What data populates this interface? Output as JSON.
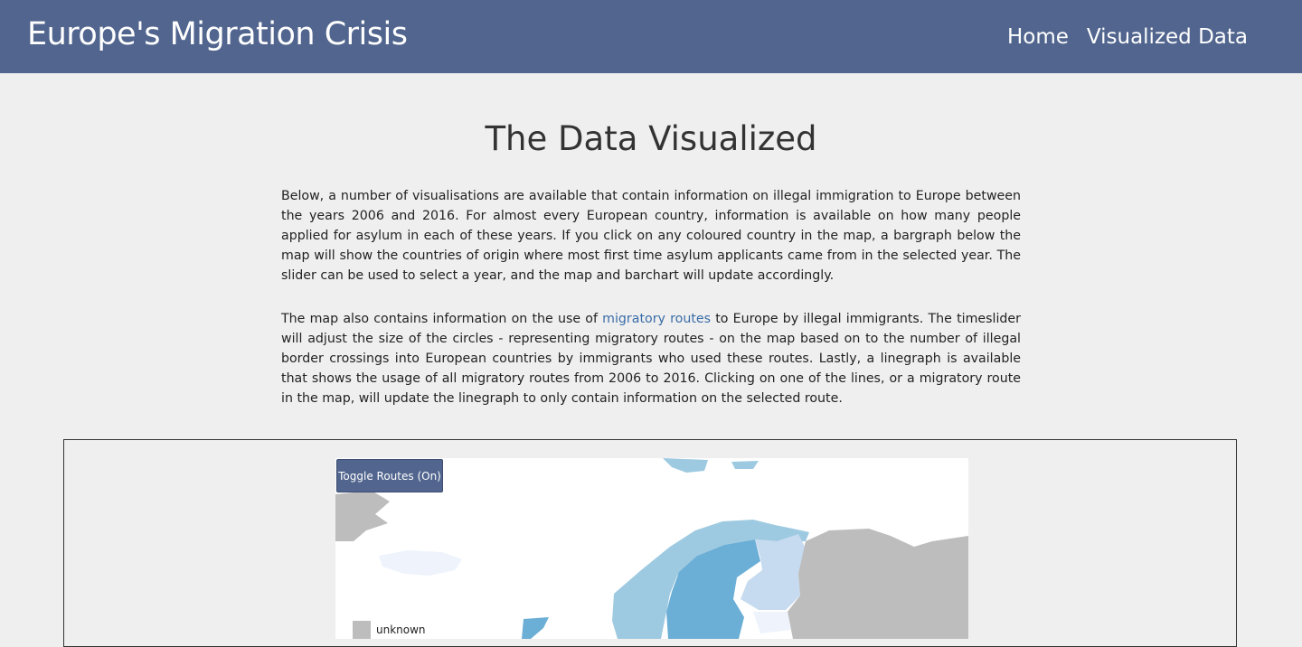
{
  "header": {
    "title": "Europe's Migration Crisis",
    "nav": [
      {
        "label": "Home"
      },
      {
        "label": "Visualized Data"
      }
    ]
  },
  "main": {
    "title": "The Data Visualized",
    "paragraph1": "Below, a number of visualisations are available that contain information on illegal immigration to Europe between the years 2006 and 2016. For almost every European country, information is available on how many people applied for asylum in each of these years. If you click on any coloured country in the map, a bargraph below the map will show the countries of origin where most first time asylum applicants came from in the selected year. The slider can be used to select a year, and the map and barchart will update accordingly.",
    "paragraph2": {
      "before": "The map also contains information on the use of ",
      "link": "migratory routes",
      "after": " to Europe by illegal immigrants. The timeslider will adjust the size of the circles - representing migratory routes - on the map based on to the number of illegal border crossings into European countries by immigrants who used these routes. Lastly, a linegraph is available that shows the usage of all migratory routes from 2006 to 2016. Clicking on one of the lines, or a migratory route in the map, will update the linegraph to only contain information on the selected route."
    }
  },
  "map": {
    "toggle_label": "Toggle Routes (On)",
    "legend": [
      {
        "label": "unknown",
        "color": "#bdbdbd"
      }
    ],
    "colors": {
      "unknown": "#bdbdbd",
      "light": "#c6dbef",
      "medium": "#9ecae1",
      "strong": "#6baed6",
      "pale": "#eef3fc",
      "accent": "#51658e"
    }
  }
}
